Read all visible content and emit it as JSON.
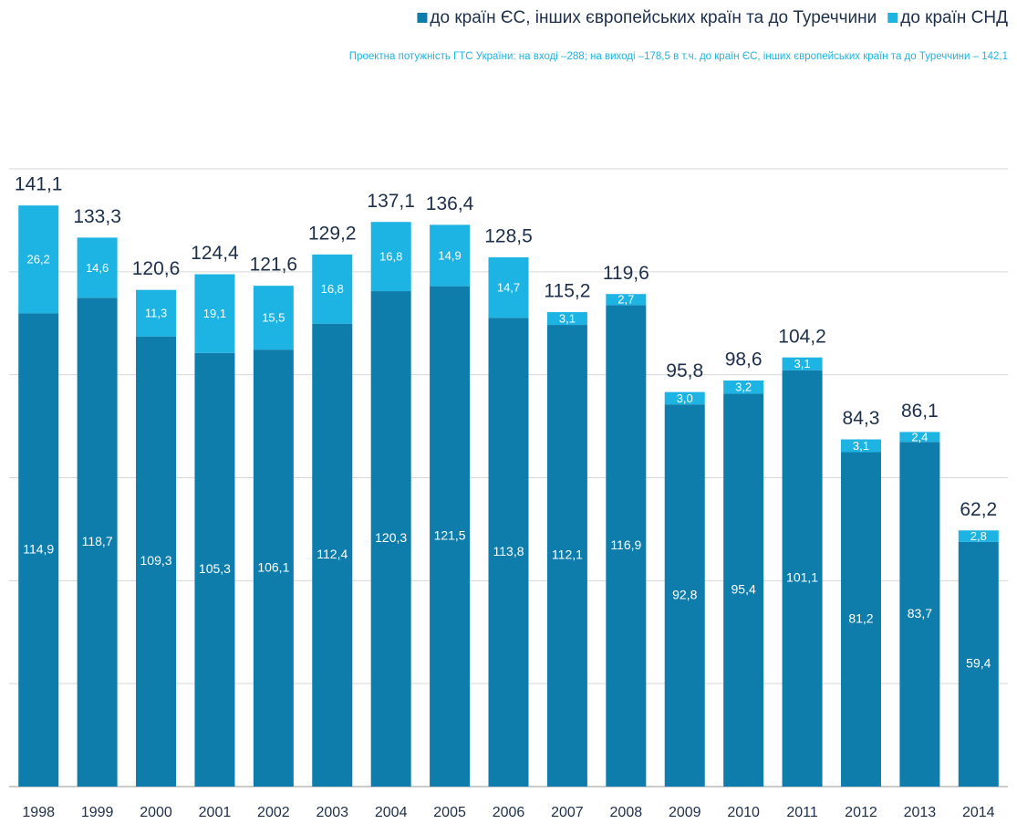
{
  "chart_data": {
    "type": "stacked_bar",
    "subtitle": "Проектна потужність ГТС України: на вході –288; на виході –178,5 в т.ч. до країн ЄС, інших європейських країн та до Туреччини –  142,1",
    "categories": [
      "1998",
      "1999",
      "2000",
      "2001",
      "2002",
      "2003",
      "2004",
      "2005",
      "2006",
      "2007",
      "2008",
      "2009",
      "2010",
      "2011",
      "2012",
      "2013",
      "2014"
    ],
    "series": [
      {
        "name": "до країн ЄС, інших європейських країн та до Туреччини",
        "color": "#0f7dab",
        "values": [
          114.9,
          118.7,
          109.3,
          105.3,
          106.1,
          112.4,
          120.3,
          121.5,
          113.8,
          112.1,
          116.9,
          92.8,
          95.4,
          101.1,
          81.2,
          83.7,
          59.4
        ],
        "value_labels": [
          "114,9",
          "118,7",
          "109,3",
          "105,3",
          "106,1",
          "112,4",
          "120,3",
          "121,5",
          "113,8",
          "112,1",
          "116,9",
          "92,8",
          "95,4",
          "101,1",
          "81,2",
          "83,7",
          "59,4"
        ]
      },
      {
        "name": "до країн СНД",
        "color": "#1db3e2",
        "values": [
          26.2,
          14.6,
          11.3,
          19.1,
          15.5,
          16.8,
          16.8,
          14.9,
          14.7,
          3.1,
          2.7,
          3.0,
          3.2,
          3.1,
          3.1,
          2.4,
          2.8
        ],
        "value_labels": [
          "26,2",
          "14,6",
          "11,3",
          "19,1",
          "15,5",
          "16,8",
          "16,8",
          "14,9",
          "14,7",
          "3,1",
          "2,7",
          "3,0",
          "3,2",
          "3,1",
          "3,1",
          "2,4",
          "2,8"
        ]
      }
    ],
    "totals": [
      141.1,
      133.3,
      120.6,
      124.4,
      121.6,
      129.2,
      137.1,
      136.4,
      128.5,
      115.2,
      119.6,
      95.8,
      98.6,
      104.2,
      84.3,
      86.1,
      62.2
    ],
    "total_labels": [
      "141,1",
      "133,3",
      "120,6",
      "124,4",
      "121,6",
      "129,2",
      "137,1",
      "136,4",
      "128,5",
      "115,2",
      "119,6",
      "95,8",
      "98,6",
      "104,2",
      "84,3",
      "86,1",
      "62,2"
    ],
    "ylim": [
      0,
      150
    ],
    "yticks": [
      0,
      25,
      50,
      75,
      100,
      125,
      150
    ],
    "grid": true
  }
}
